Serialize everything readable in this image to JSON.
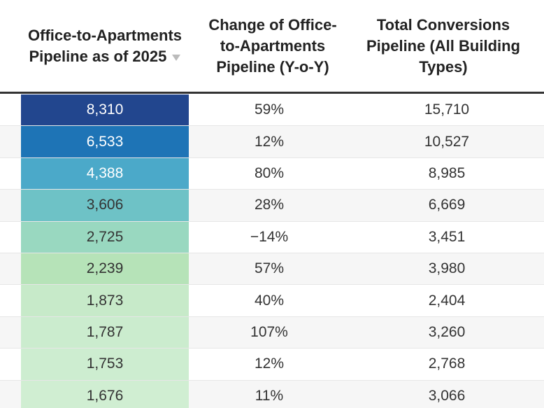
{
  "table": {
    "header": [
      "Office-to-Apartments Pipeline as of 2025",
      "Change of Office-to-Apartments Pipeline (Y-o-Y)",
      "Total Conversions Pipeline (All Building Types)"
    ],
    "rows": [
      [
        "8,310",
        "59%",
        "15,710"
      ],
      [
        "6,533",
        "12%",
        "10,527"
      ],
      [
        "4,388",
        "80%",
        "8,985"
      ],
      [
        "3,606",
        "28%",
        "6,669"
      ],
      [
        "2,725",
        "−14%",
        "3,451"
      ],
      [
        "2,239",
        "57%",
        "3,980"
      ],
      [
        "1,873",
        "40%",
        "2,404"
      ],
      [
        "1,787",
        "107%",
        "3,260"
      ],
      [
        "1,753",
        "12%",
        "2,768"
      ],
      [
        "1,676",
        "11%",
        "3,066"
      ]
    ],
    "heat_colors": [
      "#22468e",
      "#1e74b6",
      "#4ba9c9",
      "#6ec2c6",
      "#99d8c0",
      "#b6e3b8",
      "#c7eac9",
      "#cbecce",
      "#cdedd0",
      "#d0eed2"
    ],
    "heat_text_colors": [
      "#ffffff",
      "#ffffff",
      "#ffffff",
      "#333333",
      "#333333",
      "#333333",
      "#333333",
      "#333333",
      "#333333",
      "#333333"
    ]
  }
}
